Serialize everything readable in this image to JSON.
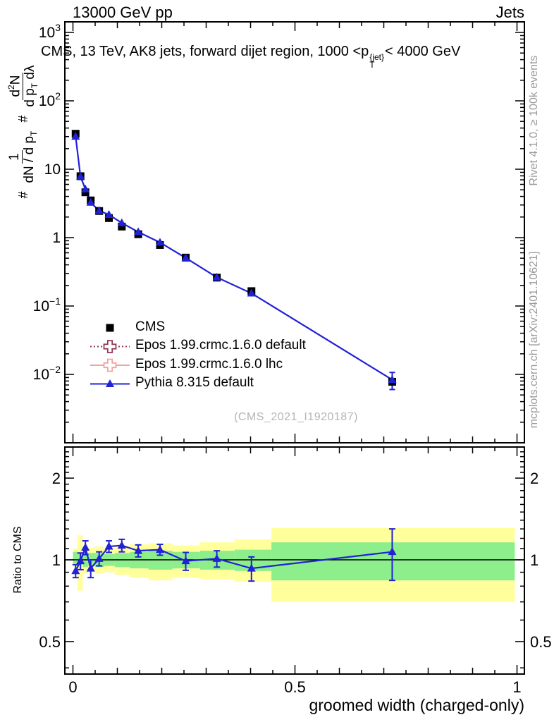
{
  "header": {
    "left": "13000 GeV pp",
    "right": "Jets"
  },
  "title": {
    "pre": "CMS, 13 TeV, AK8 jets, forward dijet region, 1000 <p",
    "sup": "{jet}",
    "sub": "T",
    "post": "< 4000 GeV"
  },
  "side_notes": {
    "top": "Rivet 4.1.0, ≥ 100k events",
    "bottom": "mcplots.cern.ch [arXiv:2401.10621]"
  },
  "watermark": "(CMS_2021_I1920187)",
  "y_axis_label": {
    "hash1": "#",
    "f1_num": "1",
    "f1_den_pre": "dN / d p",
    "f1_den_sub": "T",
    "hash2": "#",
    "f2_num_pre": "d",
    "f2_num_sup": "2",
    "f2_num_post": "N",
    "f2_den_pre": "d p",
    "f2_den_sub": "T",
    "f2_den_post": " dλ"
  },
  "ratio_axis_label": "Ratio to CMS",
  "x_axis_label": "groomed width (charged-only)",
  "legend": [
    {
      "label": "CMS",
      "marker": "filled-square",
      "color": "#000000",
      "line": "none"
    },
    {
      "label": "Epos 1.99.crmc.1.6.0 default",
      "marker": "open-cross",
      "color": "#8f3a5c",
      "line": "dotted"
    },
    {
      "label": "Epos 1.99.crmc.1.6.0 lhc",
      "marker": "open-cross",
      "color": "#f7a1a1",
      "line": "solid"
    },
    {
      "label": "Pythia 8.315 default",
      "marker": "filled-triangle",
      "color": "#2121d6",
      "line": "solid"
    }
  ],
  "chart_data": {
    "type": "line",
    "title": "CMS, 13 TeV, AK8 jets, forward dijet region, 1000 < pT^{jet} < 4000 GeV",
    "xlabel": "groomed width (charged-only)",
    "ylabel": "# 1/(dN/dpT) # d2N/(dpT dλ)",
    "x_range": [
      0,
      1
    ],
    "legend_position": "middle-left",
    "grid": false,
    "main_panel": {
      "yscale": "log",
      "ylim": [
        0.001,
        1400
      ],
      "x": [
        0.006,
        0.017,
        0.028,
        0.04,
        0.059,
        0.081,
        0.11,
        0.147,
        0.196,
        0.254,
        0.324,
        0.402,
        0.719
      ],
      "cms": [
        33,
        7.9,
        4.6,
        3.5,
        2.45,
        1.93,
        1.45,
        1.12,
        0.78,
        0.51,
        0.26,
        0.165,
        0.0078
      ],
      "pythia_last_point_err_frac": 0.28,
      "x_ticks": [
        {
          "v": 0,
          "label": "0"
        },
        {
          "v": 0.5,
          "label": "0.5"
        },
        {
          "v": 1,
          "label": "1"
        }
      ],
      "y_ticks": [
        {
          "v": 1000,
          "base": "10",
          "exp": "3"
        },
        {
          "v": 100,
          "base": "10",
          "exp": "2"
        },
        {
          "v": 10,
          "base": "10",
          "exp": ""
        },
        {
          "v": 1,
          "base": "1",
          "exp": ""
        },
        {
          "v": 0.1,
          "base": "10",
          "exp": "−1"
        },
        {
          "v": 0.01,
          "base": "10",
          "exp": "−2"
        }
      ]
    },
    "ratio_panel": {
      "yscale": "log",
      "ylim": [
        0.38,
        2.6
      ],
      "reference": 1,
      "pythia_ratio": [
        0.91,
        0.99,
        1.11,
        0.93,
        1.01,
        1.12,
        1.13,
        1.08,
        1.09,
        0.99,
        1.01,
        0.93,
        1.07
      ],
      "ratio_err": [
        0.05,
        0.07,
        0.065,
        0.07,
        0.06,
        0.055,
        0.06,
        0.055,
        0.05,
        0.075,
        0.07,
        0.095,
        0.23
      ],
      "y_ticks": [
        {
          "v": 2,
          "label": "2"
        },
        {
          "v": 1,
          "label": "1"
        },
        {
          "v": 0.5,
          "label": "0.5"
        }
      ],
      "bands": [
        {
          "x0": 0.0,
          "x1": 0.01,
          "g_lo": 0.97,
          "g_hi": 1.07,
          "y_lo": 0.94,
          "y_hi": 1.1
        },
        {
          "x0": 0.01,
          "x1": 0.022,
          "g_lo": 0.96,
          "g_hi": 1.06,
          "y_lo": 0.77,
          "y_hi": 1.23
        },
        {
          "x0": 0.022,
          "x1": 0.034,
          "g_lo": 0.94,
          "g_hi": 1.06,
          "y_lo": 0.89,
          "y_hi": 1.12
        },
        {
          "x0": 0.034,
          "x1": 0.05,
          "g_lo": 0.95,
          "g_hi": 1.06,
          "y_lo": 0.9,
          "y_hi": 1.11
        },
        {
          "x0": 0.05,
          "x1": 0.07,
          "g_lo": 0.94,
          "g_hi": 1.06,
          "y_lo": 0.89,
          "y_hi": 1.12
        },
        {
          "x0": 0.07,
          "x1": 0.094,
          "g_lo": 0.95,
          "g_hi": 1.05,
          "y_lo": 0.9,
          "y_hi": 1.1
        },
        {
          "x0": 0.094,
          "x1": 0.128,
          "g_lo": 0.94,
          "g_hi": 1.06,
          "y_lo": 0.88,
          "y_hi": 1.12
        },
        {
          "x0": 0.128,
          "x1": 0.17,
          "g_lo": 0.93,
          "g_hi": 1.07,
          "y_lo": 0.86,
          "y_hi": 1.14
        },
        {
          "x0": 0.17,
          "x1": 0.224,
          "g_lo": 0.92,
          "g_hi": 1.08,
          "y_lo": 0.84,
          "y_hi": 1.15
        },
        {
          "x0": 0.224,
          "x1": 0.286,
          "g_lo": 0.93,
          "g_hi": 1.07,
          "y_lo": 0.86,
          "y_hi": 1.13
        },
        {
          "x0": 0.286,
          "x1": 0.364,
          "g_lo": 0.92,
          "g_hi": 1.08,
          "y_lo": 0.85,
          "y_hi": 1.16
        },
        {
          "x0": 0.364,
          "x1": 0.447,
          "g_lo": 0.91,
          "g_hi": 1.09,
          "y_lo": 0.83,
          "y_hi": 1.19
        },
        {
          "x0": 0.447,
          "x1": 0.995,
          "g_lo": 0.84,
          "g_hi": 1.16,
          "y_lo": 0.7,
          "y_hi": 1.31
        }
      ]
    },
    "series_names": [
      "CMS",
      "Epos 1.99.crmc.1.6.0 default",
      "Epos 1.99.crmc.1.6.0 lhc",
      "Pythia 8.315 default"
    ],
    "colors": {
      "cms": "#000000",
      "epos_default": "#8f3a5c",
      "epos_lhc": "#f7a1a1",
      "pythia": "#2121d6",
      "band_inner": "#8cef8c",
      "band_outer": "#ffff9c"
    }
  }
}
